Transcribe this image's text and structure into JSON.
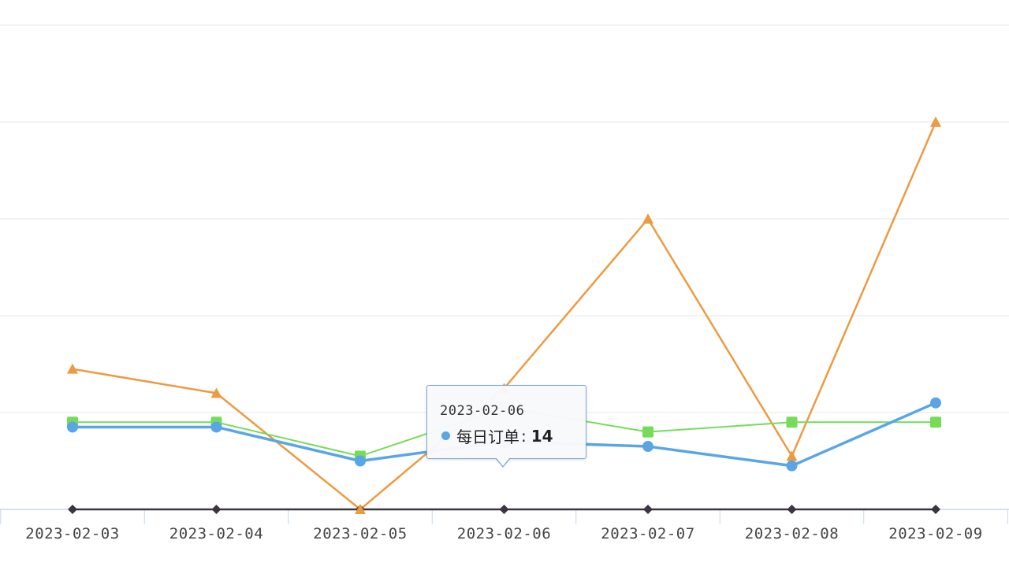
{
  "chart_data": {
    "type": "line",
    "categories": [
      "2023-02-03",
      "2023-02-04",
      "2023-02-05",
      "2023-02-06",
      "2023-02-07",
      "2023-02-08",
      "2023-02-09"
    ],
    "ylim": [
      0,
      100
    ],
    "grid": true,
    "series": [
      {
        "name": "每日订单",
        "color": "#5aa5e6",
        "marker": "circle",
        "values": [
          17,
          17,
          10,
          14,
          13,
          9,
          22
        ]
      },
      {
        "name": "",
        "color": "#ee9a40",
        "marker": "triangle",
        "values": [
          29,
          24,
          0,
          25,
          60,
          11,
          80
        ]
      },
      {
        "name": "",
        "color": "#75dc5a",
        "marker": "square",
        "values": [
          18,
          18,
          11,
          21,
          16,
          18,
          18
        ]
      },
      {
        "name": "",
        "color": "#3a3540",
        "marker": "diamond",
        "values": [
          0,
          0,
          0,
          0,
          0,
          0,
          0
        ]
      }
    ]
  },
  "tooltip": {
    "date": "2023-02-06",
    "series_name": "每日订单",
    "separator": ":",
    "value": "14",
    "color": "#5aa5e6"
  }
}
